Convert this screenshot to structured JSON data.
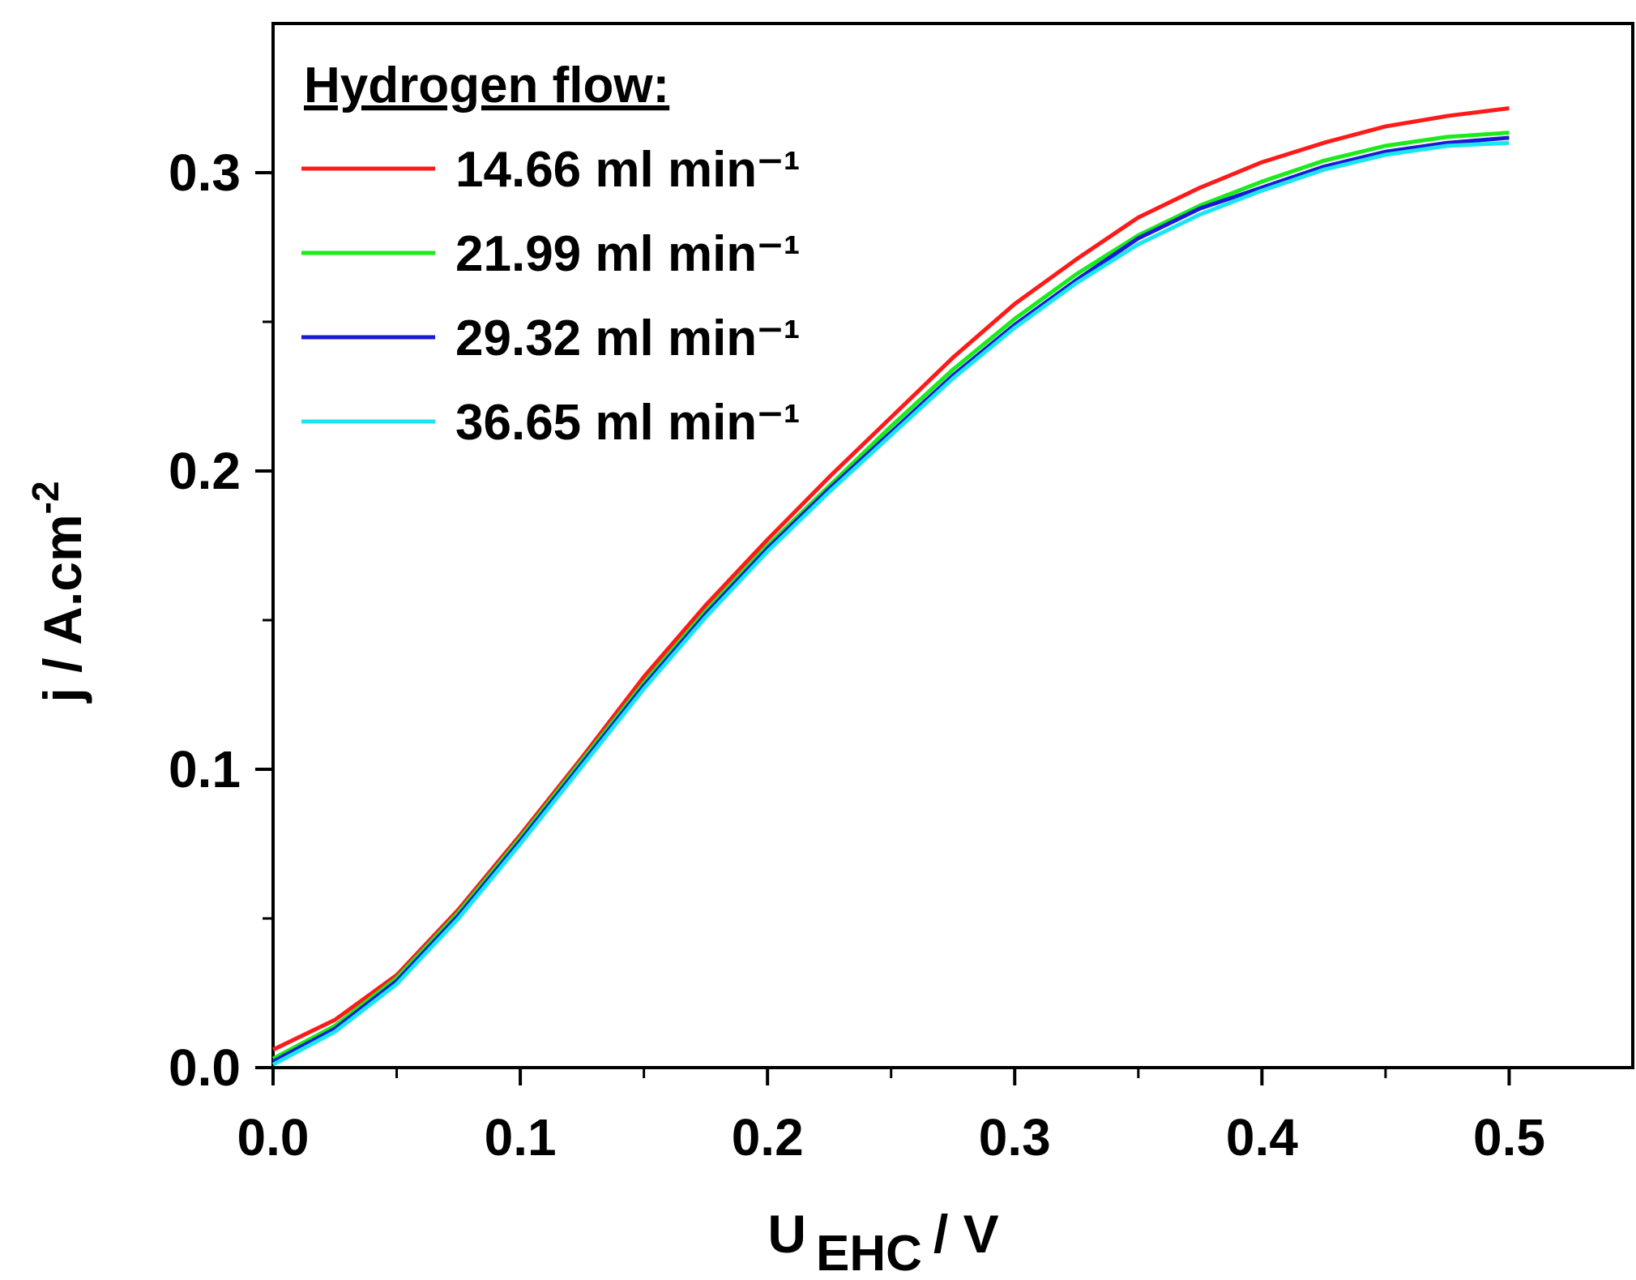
{
  "chart_data": {
    "type": "line",
    "xlabel": {
      "main": "U",
      "sub": "EHC",
      "unit": "/ V"
    },
    "ylabel": {
      "main": "j / A.cm",
      "sup": "-2"
    },
    "legend_title": "Hydrogen flow:",
    "legend_position": "upper-left",
    "x": [
      0,
      0.025,
      0.05,
      0.075,
      0.1,
      0.125,
      0.15,
      0.175,
      0.2,
      0.225,
      0.25,
      0.275,
      0.3,
      0.325,
      0.35,
      0.375,
      0.4,
      0.425,
      0.45,
      0.475,
      0.5
    ],
    "series": [
      {
        "name": "14.66 ml min⁻¹",
        "color": "#ff1a1a",
        "values": [
          0.006,
          0.016,
          0.031,
          0.053,
          0.078,
          0.104,
          0.131,
          0.155,
          0.177,
          0.198,
          0.218,
          0.238,
          0.256,
          0.271,
          0.285,
          0.295,
          0.3035,
          0.31,
          0.3155,
          0.319,
          0.3216
        ]
      },
      {
        "name": "21.99 ml min⁻¹",
        "color": "#1aeb1a",
        "values": [
          0.003,
          0.014,
          0.03,
          0.052,
          0.077,
          0.103,
          0.129,
          0.153,
          0.175,
          0.195,
          0.215,
          0.234,
          0.251,
          0.266,
          0.279,
          0.289,
          0.297,
          0.304,
          0.309,
          0.312,
          0.3134
        ]
      },
      {
        "name": "29.32 ml min⁻¹",
        "color": "#1a1ad6",
        "values": [
          0.002,
          0.013,
          0.029,
          0.051,
          0.076,
          0.102,
          0.128,
          0.152,
          0.174,
          0.194,
          0.213,
          0.232,
          0.249,
          0.264,
          0.278,
          0.288,
          0.295,
          0.302,
          0.307,
          0.31,
          0.3117
        ]
      },
      {
        "name": "36.65 ml min⁻¹",
        "color": "#1ae6f0",
        "values": [
          0.001,
          0.012,
          0.028,
          0.05,
          0.075,
          0.101,
          0.127,
          0.151,
          0.173,
          0.193,
          0.212,
          0.231,
          0.248,
          0.263,
          0.276,
          0.286,
          0.294,
          0.301,
          0.306,
          0.309,
          0.31
        ]
      }
    ],
    "xlim": [
      0,
      0.55
    ],
    "ylim": [
      0,
      0.35
    ],
    "xticks": [
      {
        "value": 0,
        "label": "0.0"
      },
      0.1,
      0.2,
      0.3,
      0.4,
      0.5
    ],
    "yticks": [
      {
        "value": 0,
        "label": "0.0"
      },
      0.1,
      0.2,
      0.3
    ],
    "xminorticks": [
      0.05,
      0.15,
      0.25,
      0.35,
      0.45
    ],
    "yminorticks": [
      0.05,
      0.15,
      0.25
    ],
    "grid": false
  }
}
